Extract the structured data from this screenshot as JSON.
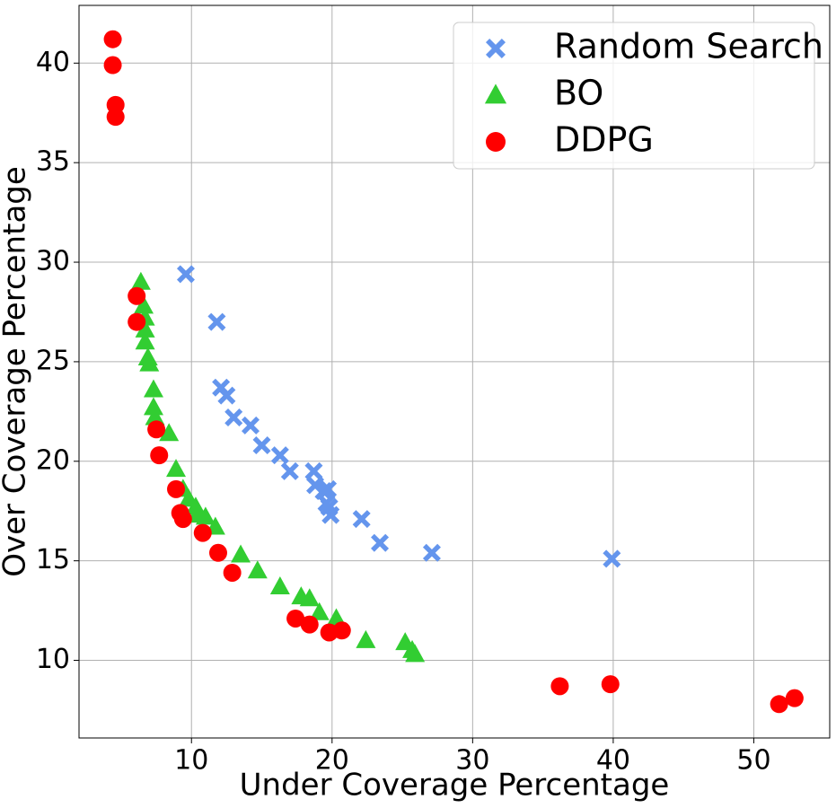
{
  "chart_data": {
    "type": "scatter",
    "xlabel": "Under Coverage Percentage",
    "ylabel": "Over Coverage Percentage",
    "xlim": [
      2,
      55.4
    ],
    "ylim": [
      6.1,
      42.9
    ],
    "xticks": [
      10,
      20,
      30,
      40,
      50
    ],
    "yticks": [
      10,
      15,
      20,
      25,
      30,
      35,
      40
    ],
    "grid": true,
    "legend": "upper right",
    "series": [
      {
        "name": "Random Search",
        "color": "#6495ed",
        "marker": "X",
        "x": [
          9.6,
          11.8,
          12.1,
          12.5,
          13.0,
          14.2,
          15.0,
          16.3,
          17.0,
          18.7,
          18.8,
          19.4,
          19.7,
          19.6,
          19.8,
          19.9,
          22.1,
          23.4,
          27.1,
          39.9
        ],
        "y": [
          29.4,
          27.0,
          23.7,
          23.3,
          22.2,
          21.8,
          20.8,
          20.3,
          19.5,
          19.5,
          18.8,
          18.5,
          18.6,
          17.9,
          17.7,
          17.3,
          17.1,
          15.9,
          15.4,
          15.1
        ]
      },
      {
        "name": "BO",
        "color": "#32cd32",
        "marker": "^",
        "x": [
          6.4,
          6.6,
          6.7,
          6.7,
          6.7,
          6.9,
          7.0,
          7.3,
          7.3,
          7.4,
          8.4,
          8.9,
          9.4,
          9.8,
          10.3,
          10.4,
          11.0,
          11.7,
          13.5,
          14.7,
          16.3,
          17.8,
          18.4,
          19.1,
          20.3,
          22.4,
          25.2,
          25.7,
          25.9
        ],
        "y": [
          29.0,
          27.8,
          27.2,
          26.6,
          26.0,
          25.2,
          24.9,
          23.6,
          22.7,
          22.2,
          21.4,
          19.6,
          18.6,
          18.1,
          17.7,
          17.3,
          17.2,
          16.7,
          15.3,
          14.5,
          13.7,
          13.2,
          13.1,
          12.4,
          12.1,
          11.0,
          10.9,
          10.5,
          10.3
        ]
      },
      {
        "name": "DDPG",
        "color": "#ff0000",
        "marker": "o",
        "x": [
          4.4,
          4.4,
          4.6,
          4.6,
          6.1,
          6.1,
          7.5,
          7.7,
          8.9,
          9.2,
          9.4,
          10.8,
          11.9,
          12.9,
          17.4,
          18.4,
          19.8,
          20.7,
          36.2,
          39.8,
          51.8,
          52.9
        ],
        "y": [
          41.2,
          39.9,
          37.9,
          37.3,
          28.3,
          27.0,
          21.6,
          20.3,
          18.6,
          17.4,
          17.1,
          16.4,
          15.4,
          14.4,
          12.1,
          11.8,
          11.4,
          11.5,
          8.7,
          8.8,
          7.8,
          8.1
        ]
      }
    ]
  }
}
